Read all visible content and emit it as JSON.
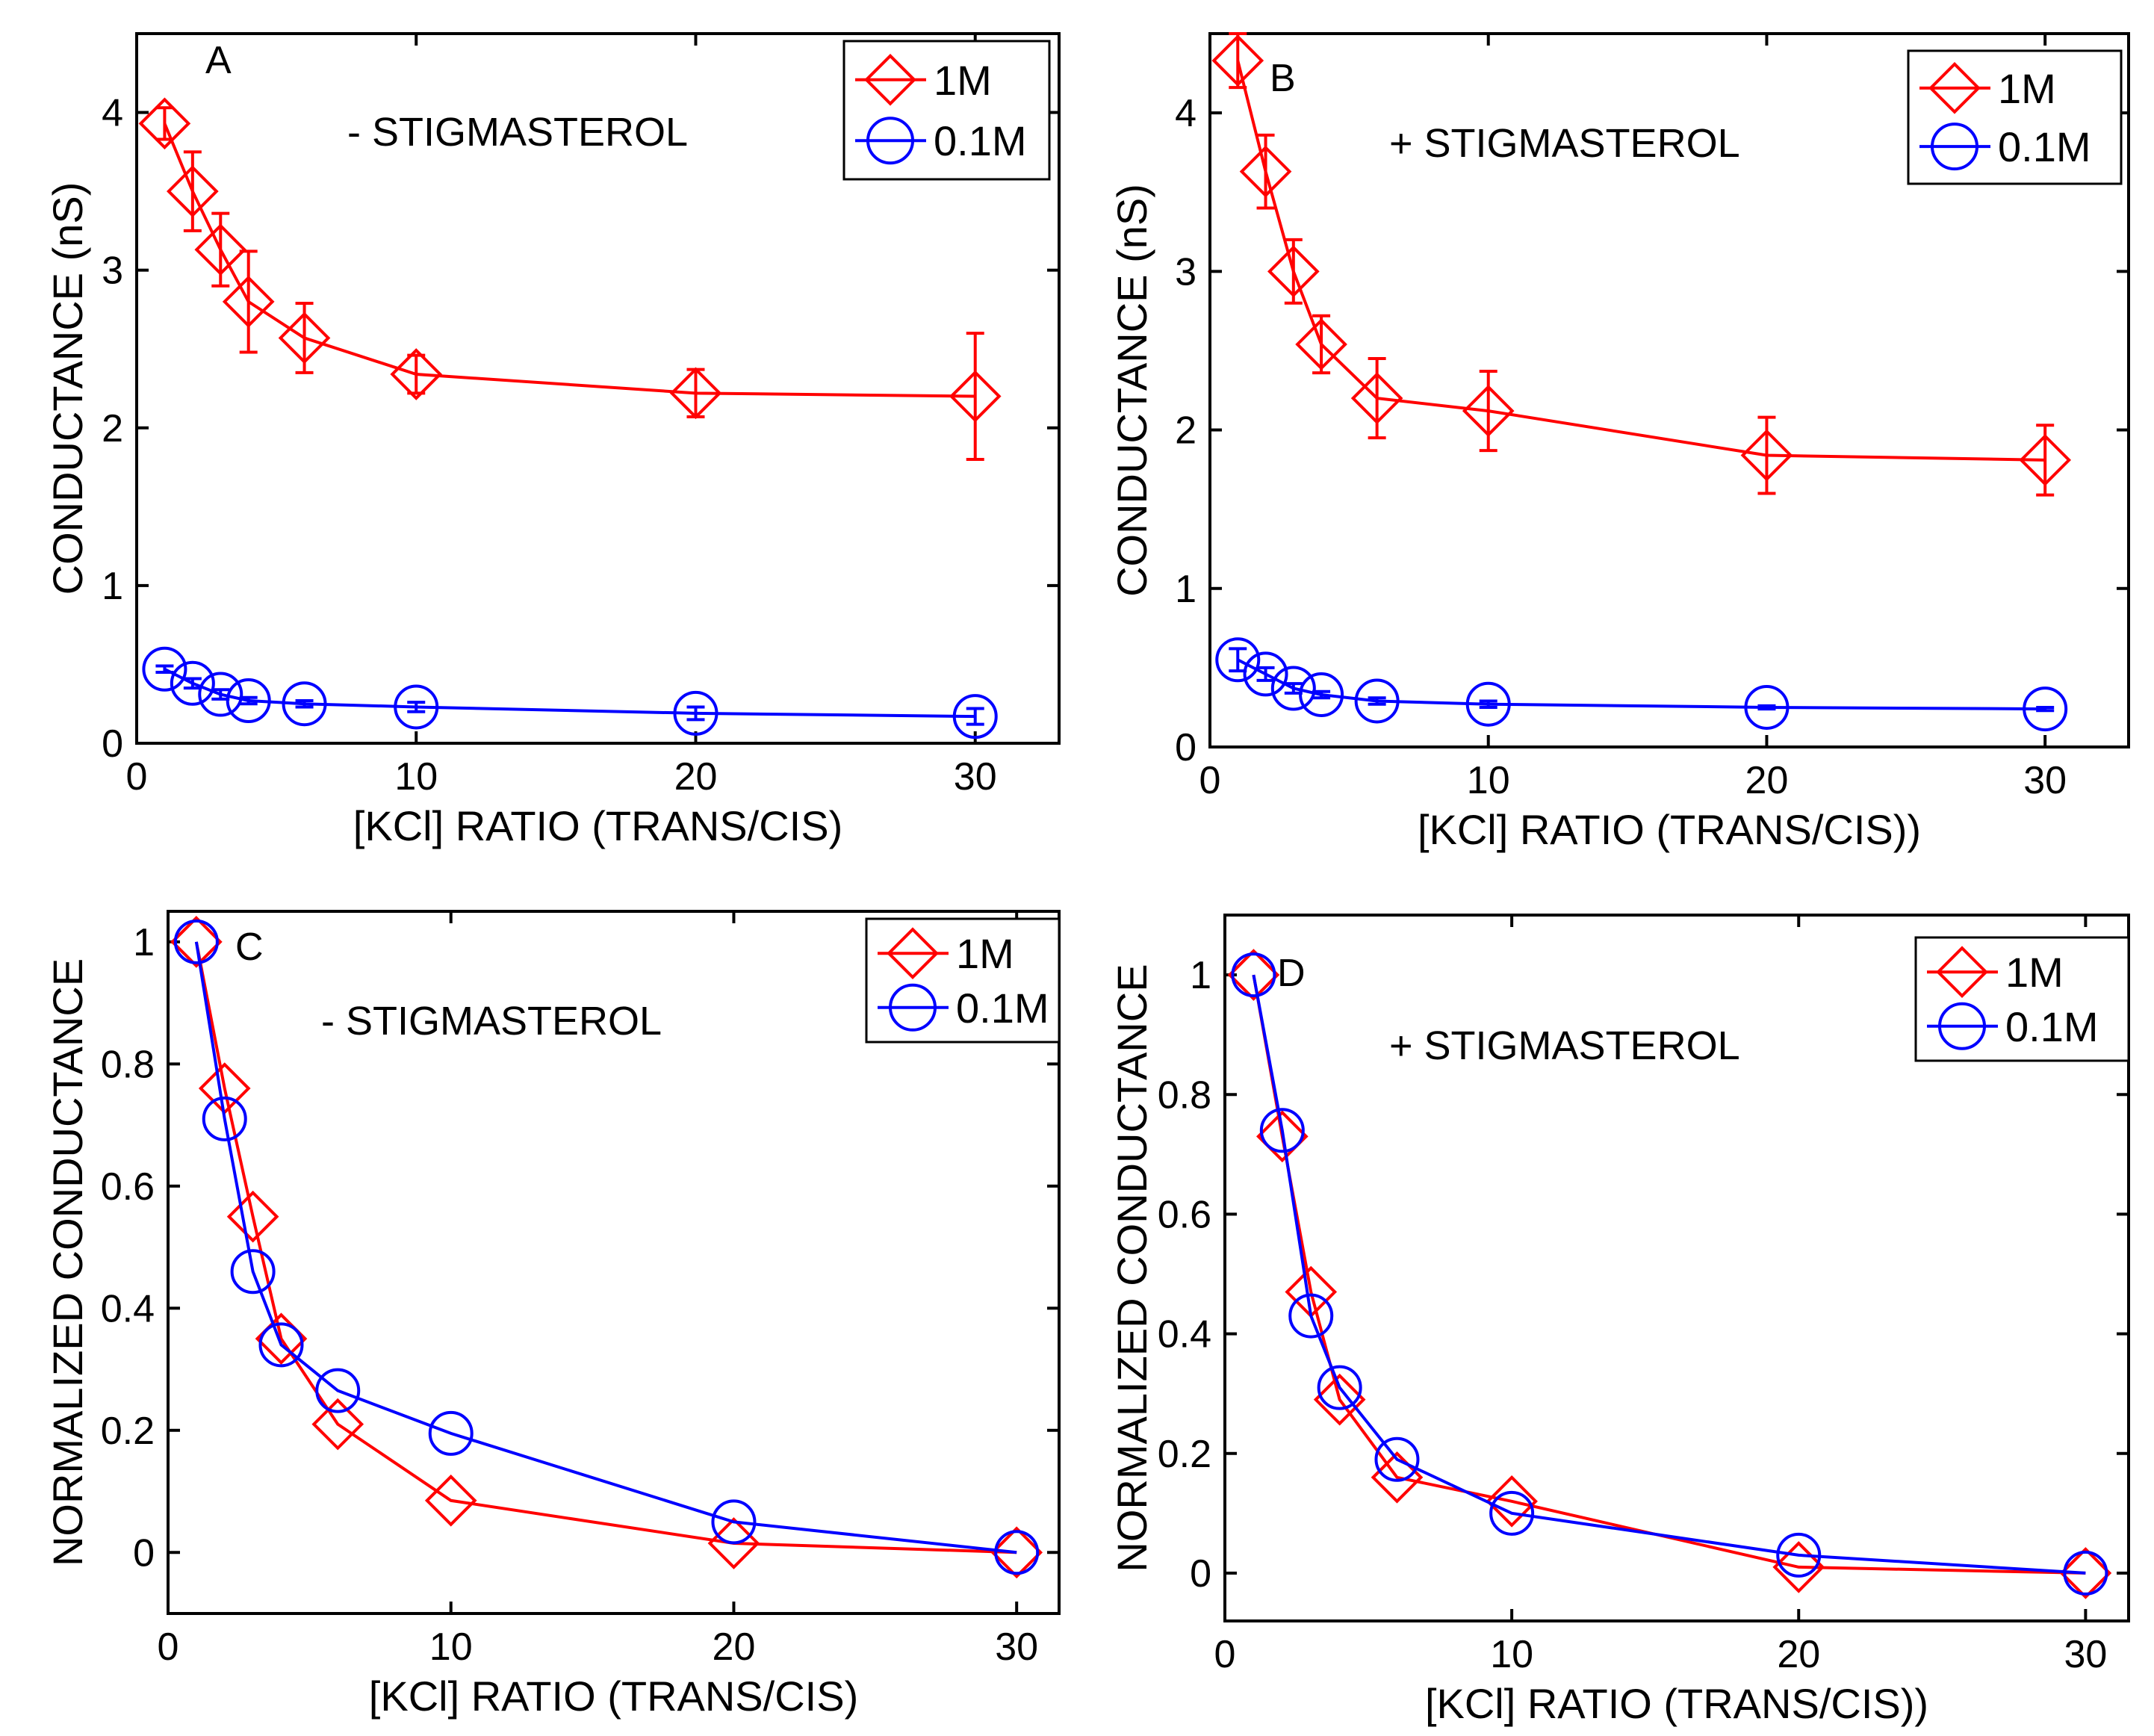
{
  "colors": {
    "series_1M": "#ff0000",
    "series_01M": "#0000ff",
    "axis": "#000000"
  },
  "chart_data": [
    {
      "panel": "A",
      "type": "line",
      "annotation": "- STIGMASTEROL",
      "xlabel": "[KCl] RATIO (TRANS/CIS)",
      "ylabel": "CONDUCTANCE (nS)",
      "xlim": [
        0,
        33
      ],
      "ylim": [
        0,
        4.5
      ],
      "xticks": [
        0,
        10,
        20,
        30
      ],
      "yticks": [
        0,
        1,
        2,
        3,
        4
      ],
      "legend": [
        "1M",
        "0.1M"
      ],
      "series": [
        {
          "name": "1M",
          "marker": "diamond",
          "color": "#ff0000",
          "x": [
            1,
            2,
            3,
            4,
            6,
            10,
            20,
            30
          ],
          "y": [
            3.93,
            3.5,
            3.13,
            2.8,
            2.57,
            2.34,
            2.22,
            2.2
          ],
          "err": [
            0.1,
            0.25,
            0.23,
            0.32,
            0.22,
            0.12,
            0.15,
            0.4
          ]
        },
        {
          "name": "0.1M",
          "marker": "circle",
          "color": "#0000ff",
          "x": [
            1,
            2,
            3,
            4,
            6,
            10,
            20,
            30
          ],
          "y": [
            0.47,
            0.38,
            0.31,
            0.27,
            0.25,
            0.23,
            0.19,
            0.17
          ],
          "err": [
            0.02,
            0.03,
            0.03,
            0.02,
            0.02,
            0.03,
            0.04,
            0.05
          ]
        }
      ]
    },
    {
      "panel": "B",
      "type": "line",
      "annotation": "+ STIGMASTEROL",
      "xlabel": "[KCl] RATIO (TRANS/CIS))",
      "ylabel": "CONDUCTANCE (nS)",
      "xlim": [
        0,
        33
      ],
      "ylim": [
        0,
        4.5
      ],
      "xticks": [
        0,
        10,
        20,
        30
      ],
      "yticks": [
        0,
        1,
        2,
        3,
        4
      ],
      "legend": [
        "1M",
        "0.1M"
      ],
      "series": [
        {
          "name": "1M",
          "marker": "diamond",
          "color": "#ff0000",
          "x": [
            1,
            2,
            3,
            4,
            6,
            10,
            20,
            30
          ],
          "y": [
            4.33,
            3.63,
            3.0,
            2.54,
            2.2,
            2.12,
            1.84,
            1.81
          ],
          "err": [
            0.17,
            0.23,
            0.2,
            0.18,
            0.25,
            0.25,
            0.24,
            0.22
          ]
        },
        {
          "name": "0.1M",
          "marker": "circle",
          "color": "#0000ff",
          "x": [
            1,
            2,
            3,
            4,
            6,
            10,
            20,
            30
          ],
          "y": [
            0.55,
            0.46,
            0.37,
            0.33,
            0.29,
            0.27,
            0.25,
            0.24
          ],
          "err": [
            0.07,
            0.04,
            0.03,
            0.02,
            0.02,
            0.02,
            0.01,
            0.01
          ]
        }
      ]
    },
    {
      "panel": "C",
      "type": "line",
      "annotation": "- STIGMASTEROL",
      "xlabel": "[KCl] RATIO (TRANS/CIS)",
      "ylabel": "NORMALIZED CONDUCTANCE",
      "xlim": [
        0,
        31.5
      ],
      "ylim": [
        -0.1,
        1.05
      ],
      "xticks": [
        0,
        10,
        20,
        30
      ],
      "yticks": [
        0,
        0.2,
        0.4,
        0.6,
        0.8,
        1
      ],
      "ytick_labels": [
        "0",
        "0.2",
        "0.4",
        "0.6",
        "0.8",
        "1"
      ],
      "legend": [
        "1M",
        "0.1M"
      ],
      "series": [
        {
          "name": "1M",
          "marker": "diamond",
          "color": "#ff0000",
          "x": [
            1,
            2,
            3,
            4,
            6,
            10,
            20,
            30
          ],
          "y": [
            1.0,
            0.76,
            0.55,
            0.35,
            0.21,
            0.085,
            0.015,
            0.0
          ]
        },
        {
          "name": "0.1M",
          "marker": "circle",
          "color": "#0000ff",
          "x": [
            1,
            2,
            3,
            4,
            6,
            10,
            20,
            30
          ],
          "y": [
            1.0,
            0.71,
            0.46,
            0.34,
            0.265,
            0.195,
            0.05,
            0.0
          ]
        }
      ]
    },
    {
      "panel": "D",
      "type": "line",
      "annotation": "+ STIGMASTEROL",
      "xlabel": "[KCl] RATIO (TRANS/CIS))",
      "ylabel": "NORMALIZED CONDUCTANCE",
      "xlim": [
        0,
        31.5
      ],
      "ylim": [
        -0.08,
        1.1
      ],
      "xticks": [
        0,
        10,
        20,
        30
      ],
      "yticks": [
        0,
        0.2,
        0.4,
        0.6,
        0.8,
        1
      ],
      "ytick_labels": [
        "0",
        "0.2",
        "0.4",
        "0.6",
        "0.8",
        "1"
      ],
      "legend": [
        "1M",
        "0.1M"
      ],
      "series": [
        {
          "name": "1M",
          "marker": "diamond",
          "color": "#ff0000",
          "x": [
            1,
            2,
            3,
            4,
            6,
            10,
            20,
            30
          ],
          "y": [
            1.0,
            0.73,
            0.47,
            0.29,
            0.16,
            0.12,
            0.01,
            0.0
          ]
        },
        {
          "name": "0.1M",
          "marker": "circle",
          "color": "#0000ff",
          "x": [
            1,
            2,
            3,
            4,
            6,
            10,
            20,
            30
          ],
          "y": [
            1.0,
            0.74,
            0.43,
            0.31,
            0.19,
            0.1,
            0.03,
            0.0
          ]
        }
      ]
    }
  ]
}
